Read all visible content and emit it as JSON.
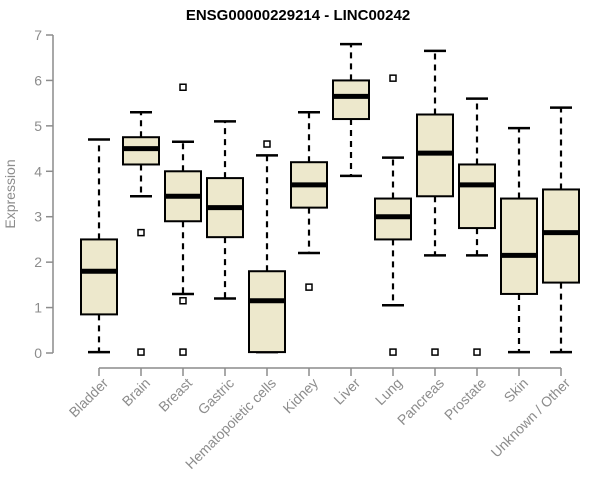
{
  "chart_data": {
    "type": "box",
    "title": "ENSG00000229214 - LINC00242",
    "ylabel": "Expression",
    "xlabel": "",
    "ylim": [
      0,
      7
    ],
    "yticks": [
      0,
      1,
      2,
      3,
      4,
      5,
      6,
      7
    ],
    "grid": false,
    "legend": "none",
    "categories": [
      "Bladder",
      "Brain",
      "Breast",
      "Gastric",
      "Hematopoietic cells",
      "Kidney",
      "Liver",
      "Lung",
      "Pancreas",
      "Prostate",
      "Skin",
      "Unknown / Other"
    ],
    "series": [
      {
        "category": "Bladder",
        "whisker_low": 0.02,
        "q1": 0.85,
        "median": 1.8,
        "q3": 2.5,
        "whisker_high": 4.7,
        "outliers": []
      },
      {
        "category": "Brain",
        "whisker_low": 3.45,
        "q1": 4.15,
        "median": 4.5,
        "q3": 4.75,
        "whisker_high": 5.3,
        "outliers": [
          2.65,
          0.02
        ]
      },
      {
        "category": "Breast",
        "whisker_low": 1.3,
        "q1": 2.9,
        "median": 3.45,
        "q3": 4.0,
        "whisker_high": 4.65,
        "outliers": [
          5.85,
          1.15,
          0.02
        ]
      },
      {
        "category": "Gastric",
        "whisker_low": 1.2,
        "q1": 2.55,
        "median": 3.2,
        "q3": 3.85,
        "whisker_high": 5.1,
        "outliers": []
      },
      {
        "category": "Hematopoietic cells",
        "whisker_low": 0.02,
        "q1": 0.02,
        "median": 1.15,
        "q3": 1.8,
        "whisker_high": 4.35,
        "outliers": [
          4.6
        ]
      },
      {
        "category": "Kidney",
        "whisker_low": 2.2,
        "q1": 3.2,
        "median": 3.7,
        "q3": 4.2,
        "whisker_high": 5.3,
        "outliers": [
          1.45
        ]
      },
      {
        "category": "Liver",
        "whisker_low": 3.9,
        "q1": 5.15,
        "median": 5.65,
        "q3": 6.0,
        "whisker_high": 6.8,
        "outliers": []
      },
      {
        "category": "Lung",
        "whisker_low": 1.05,
        "q1": 2.5,
        "median": 3.0,
        "q3": 3.4,
        "whisker_high": 4.3,
        "outliers": [
          6.05,
          0.02
        ]
      },
      {
        "category": "Pancreas",
        "whisker_low": 2.15,
        "q1": 3.45,
        "median": 4.4,
        "q3": 5.25,
        "whisker_high": 6.65,
        "outliers": [
          0.02
        ]
      },
      {
        "category": "Prostate",
        "whisker_low": 2.15,
        "q1": 2.75,
        "median": 3.7,
        "q3": 4.15,
        "whisker_high": 5.6,
        "outliers": [
          0.02
        ]
      },
      {
        "category": "Skin",
        "whisker_low": 0.02,
        "q1": 1.3,
        "median": 2.15,
        "q3": 3.4,
        "whisker_high": 4.95,
        "outliers": []
      },
      {
        "category": "Unknown / Other",
        "whisker_low": 0.02,
        "q1": 1.55,
        "median": 2.65,
        "q3": 3.6,
        "whisker_high": 5.4,
        "outliers": []
      }
    ],
    "colors": {
      "box_fill": "#EDE8CC",
      "box_stroke": "#000000",
      "median": "#000000",
      "whisker": "#000000",
      "outlier_fill": "#FFFFFF",
      "axis": "#8C8C8C",
      "title": "#000000",
      "background": "#FFFFFF"
    }
  }
}
